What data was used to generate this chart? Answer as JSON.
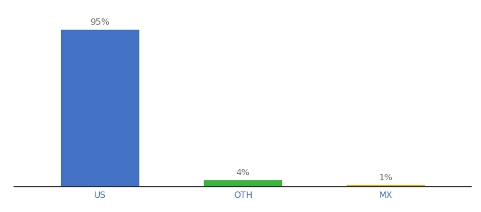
{
  "categories": [
    "US",
    "OTH",
    "MX"
  ],
  "values": [
    95,
    4,
    1
  ],
  "labels": [
    "95%",
    "4%",
    "1%"
  ],
  "bar_colors": [
    "#4472C4",
    "#3CB540",
    "#FFA500"
  ],
  "background_color": "#ffffff",
  "ylim": [
    0,
    100
  ],
  "bar_width": 0.55,
  "label_color": "#777777",
  "tick_color": "#4472C4",
  "label_fontsize": 9,
  "tick_fontsize": 9
}
